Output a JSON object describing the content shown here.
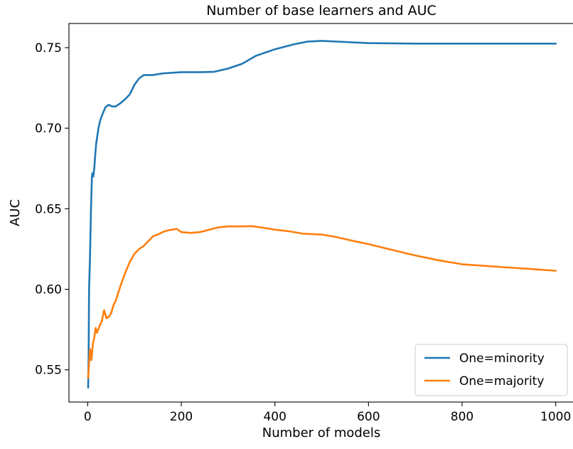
{
  "chart_data": {
    "type": "line",
    "title": "Number of base learners and AUC",
    "xlabel": "Number of models",
    "ylabel": "AUC",
    "xlim": [
      -40,
      1040
    ],
    "ylim": [
      0.53,
      0.765
    ],
    "xticks": [
      0,
      200,
      400,
      600,
      800,
      1000
    ],
    "yticks": [
      0.55,
      0.6,
      0.65,
      0.7,
      0.75
    ],
    "ytick_labels": [
      "0.55",
      "0.60",
      "0.65",
      "0.70",
      "0.75"
    ],
    "grid": false,
    "legend_position": "lower-right",
    "series": [
      {
        "name": "One=minority",
        "color": "#1f77b4",
        "points": [
          [
            1,
            0.539
          ],
          [
            2,
            0.56
          ],
          [
            3,
            0.6
          ],
          [
            5,
            0.62
          ],
          [
            7,
            0.648
          ],
          [
            9,
            0.67
          ],
          [
            10,
            0.672
          ],
          [
            12,
            0.67
          ],
          [
            14,
            0.675
          ],
          [
            16,
            0.683
          ],
          [
            18,
            0.69
          ],
          [
            20,
            0.694
          ],
          [
            23,
            0.7
          ],
          [
            27,
            0.705
          ],
          [
            32,
            0.709
          ],
          [
            38,
            0.713
          ],
          [
            45,
            0.7145
          ],
          [
            52,
            0.7135
          ],
          [
            60,
            0.7135
          ],
          [
            70,
            0.7155
          ],
          [
            80,
            0.718
          ],
          [
            90,
            0.721
          ],
          [
            100,
            0.727
          ],
          [
            110,
            0.731
          ],
          [
            120,
            0.733
          ],
          [
            140,
            0.733
          ],
          [
            160,
            0.734
          ],
          [
            200,
            0.7348
          ],
          [
            240,
            0.7348
          ],
          [
            270,
            0.735
          ],
          [
            300,
            0.737
          ],
          [
            330,
            0.74
          ],
          [
            360,
            0.745
          ],
          [
            400,
            0.749
          ],
          [
            440,
            0.752
          ],
          [
            470,
            0.7538
          ],
          [
            500,
            0.7542
          ],
          [
            550,
            0.7535
          ],
          [
            600,
            0.7528
          ],
          [
            700,
            0.7525
          ],
          [
            800,
            0.7525
          ],
          [
            900,
            0.7525
          ],
          [
            1000,
            0.7525
          ]
        ]
      },
      {
        "name": "One=majority",
        "color": "#ff7f0e",
        "points": [
          [
            1,
            0.545
          ],
          [
            3,
            0.554
          ],
          [
            5,
            0.563
          ],
          [
            8,
            0.556
          ],
          [
            11,
            0.566
          ],
          [
            14,
            0.57
          ],
          [
            17,
            0.576
          ],
          [
            20,
            0.573
          ],
          [
            25,
            0.577
          ],
          [
            30,
            0.58
          ],
          [
            35,
            0.587
          ],
          [
            40,
            0.582
          ],
          [
            45,
            0.583
          ],
          [
            50,
            0.585
          ],
          [
            55,
            0.59
          ],
          [
            60,
            0.593
          ],
          [
            70,
            0.602
          ],
          [
            80,
            0.61
          ],
          [
            90,
            0.617
          ],
          [
            100,
            0.622
          ],
          [
            110,
            0.625
          ],
          [
            120,
            0.627
          ],
          [
            130,
            0.63
          ],
          [
            140,
            0.633
          ],
          [
            150,
            0.634
          ],
          [
            160,
            0.6355
          ],
          [
            170,
            0.6365
          ],
          [
            180,
            0.637
          ],
          [
            190,
            0.6375
          ],
          [
            200,
            0.6355
          ],
          [
            220,
            0.635
          ],
          [
            240,
            0.6355
          ],
          [
            260,
            0.637
          ],
          [
            280,
            0.6385
          ],
          [
            300,
            0.639
          ],
          [
            330,
            0.639
          ],
          [
            350,
            0.6392
          ],
          [
            380,
            0.638
          ],
          [
            400,
            0.637
          ],
          [
            430,
            0.636
          ],
          [
            460,
            0.6345
          ],
          [
            500,
            0.634
          ],
          [
            530,
            0.6325
          ],
          [
            560,
            0.6305
          ],
          [
            600,
            0.628
          ],
          [
            650,
            0.6245
          ],
          [
            700,
            0.621
          ],
          [
            750,
            0.618
          ],
          [
            800,
            0.6155
          ],
          [
            850,
            0.6145
          ],
          [
            900,
            0.6135
          ],
          [
            950,
            0.6125
          ],
          [
            1000,
            0.6115
          ]
        ]
      }
    ]
  }
}
